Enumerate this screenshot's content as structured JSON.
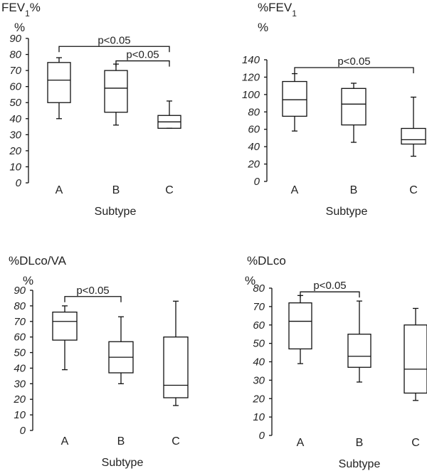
{
  "chart_data": [
    {
      "type": "boxplot",
      "title": "FEV",
      "title_sub": "1",
      "title_suffix": "%",
      "ylabel": "%",
      "xlabel": "Subtype",
      "ylim": [
        0,
        90
      ],
      "yticks": [
        0,
        10,
        20,
        30,
        40,
        50,
        60,
        70,
        80,
        90
      ],
      "categories": [
        "A",
        "B",
        "C"
      ],
      "boxes": [
        {
          "category": "A",
          "min": 40,
          "q1": 50,
          "median": 64,
          "q3": 75,
          "max": 78
        },
        {
          "category": "B",
          "min": 36,
          "q1": 44,
          "median": 59,
          "q3": 70,
          "max": 74
        },
        {
          "category": "C",
          "min": 34,
          "q1": 34,
          "median": 38,
          "q3": 42,
          "max": 51
        }
      ],
      "annotations": [
        {
          "from": "A",
          "to": "C",
          "label": "p<0.05",
          "y": 85
        },
        {
          "from": "B",
          "to": "C",
          "label": "p<0.05",
          "y": 76
        }
      ]
    },
    {
      "type": "boxplot",
      "title": "%FEV",
      "title_sub": "1",
      "title_suffix": "",
      "ylabel": "%",
      "xlabel": "Subtype",
      "ylim": [
        0,
        140
      ],
      "yticks": [
        0,
        20,
        40,
        60,
        80,
        100,
        120,
        140
      ],
      "categories": [
        "A",
        "B",
        "C"
      ],
      "boxes": [
        {
          "category": "A",
          "min": 58,
          "q1": 75,
          "median": 94,
          "q3": 115,
          "max": 124
        },
        {
          "category": "B",
          "min": 45,
          "q1": 65,
          "median": 89,
          "q3": 107,
          "max": 113
        },
        {
          "category": "C",
          "min": 29,
          "q1": 43,
          "median": 48,
          "q3": 61,
          "max": 97
        }
      ],
      "annotations": [
        {
          "from": "A",
          "to": "C",
          "label": "p<0.05",
          "y": 131
        }
      ]
    },
    {
      "type": "boxplot",
      "title": "%DLco/VA",
      "title_sub": "",
      "title_suffix": "",
      "ylabel": "%",
      "xlabel": "Subtype",
      "ylim": [
        0,
        90
      ],
      "yticks": [
        0,
        10,
        20,
        30,
        40,
        50,
        60,
        70,
        80,
        90
      ],
      "categories": [
        "A",
        "B",
        "C"
      ],
      "boxes": [
        {
          "category": "A",
          "min": 39,
          "q1": 58,
          "median": 70,
          "q3": 76,
          "max": 80
        },
        {
          "category": "B",
          "min": 30,
          "q1": 37,
          "median": 47,
          "q3": 57,
          "max": 73
        },
        {
          "category": "C",
          "min": 16,
          "q1": 21,
          "median": 29,
          "q3": 60,
          "max": 83
        }
      ],
      "annotations": [
        {
          "from": "A",
          "to": "B",
          "label": "p<0.05",
          "y": 86
        }
      ]
    },
    {
      "type": "boxplot",
      "title": "%DLco",
      "title_sub": "",
      "title_suffix": "",
      "ylabel": "%",
      "xlabel": "Subtype",
      "ylim": [
        0,
        80
      ],
      "yticks": [
        0,
        10,
        20,
        30,
        40,
        50,
        60,
        70,
        80
      ],
      "categories": [
        "A",
        "B",
        "C"
      ],
      "boxes": [
        {
          "category": "A",
          "min": 39,
          "q1": 47,
          "median": 62,
          "q3": 72,
          "max": 76
        },
        {
          "category": "B",
          "min": 29,
          "q1": 37,
          "median": 43,
          "q3": 55,
          "max": 73
        },
        {
          "category": "C",
          "min": 19,
          "q1": 23,
          "median": 36,
          "q3": 60,
          "max": 69
        }
      ],
      "annotations": [
        {
          "from": "A",
          "to": "B",
          "label": "p<0.05",
          "y": 78
        }
      ]
    }
  ]
}
